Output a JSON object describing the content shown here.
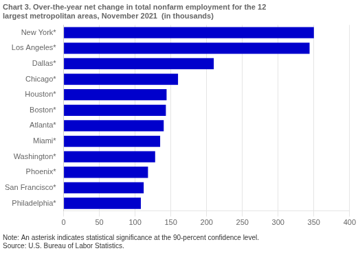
{
  "chart_data": {
    "type": "bar",
    "orientation": "horizontal",
    "title": [
      "Chart 3. Over-the-year net change in total nonfarm employment for the 12",
      "largest metropolitan areas, November 2021  (in thousands)"
    ],
    "categories": [
      "Philadelphia*",
      "San Francisco*",
      "Phoenix*",
      "Washington*",
      "Miami*",
      "Atlanta*",
      "Boston*",
      "Houston*",
      "Chicago*",
      "Dallas*",
      "Los Angeles*",
      "New York*"
    ],
    "values": [
      108,
      112,
      118,
      128,
      135,
      140,
      143,
      144,
      160,
      210,
      344,
      350
    ],
    "color": "#0000cc",
    "xlim": [
      0,
      400
    ],
    "xticks": [
      0,
      50,
      100,
      150,
      200,
      250,
      300,
      350,
      400
    ],
    "grid": true,
    "annotations": [
      "Note: An asterisk indicates statistical significance at the 90-percent confidence level.",
      "Source: U.S. Bureau of Labor Statistics."
    ]
  }
}
